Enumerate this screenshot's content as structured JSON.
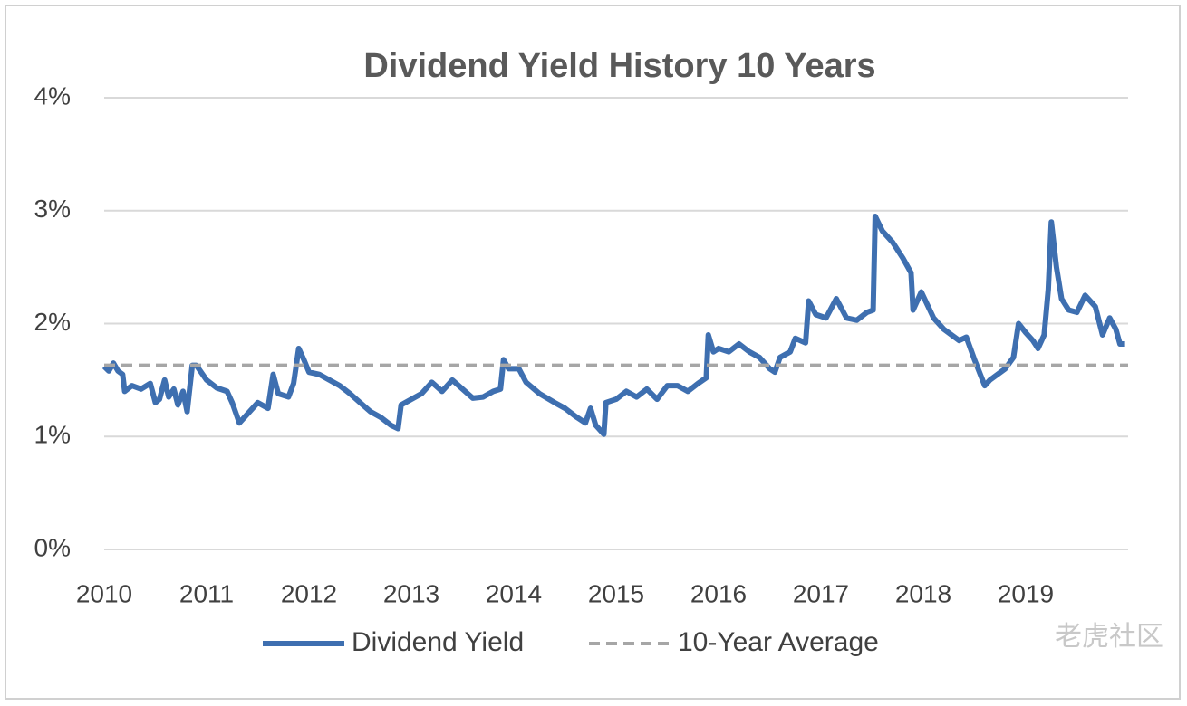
{
  "chart_data": {
    "type": "line",
    "title": "Dividend Yield History 10 Years",
    "xlim": [
      2010,
      2020
    ],
    "xticks": [
      2010,
      2011,
      2012,
      2013,
      2014,
      2015,
      2016,
      2017,
      2018,
      2019
    ],
    "ylim": [
      0,
      4
    ],
    "yticks": [
      {
        "value": 0,
        "label": "0%"
      },
      {
        "value": 1,
        "label": "1%"
      },
      {
        "value": 2,
        "label": "2%"
      },
      {
        "value": 3,
        "label": "3%"
      },
      {
        "value": 4,
        "label": "4%"
      }
    ],
    "grid": true,
    "legend": "bottom",
    "watermark": "老虎社区",
    "series": [
      {
        "name": "Dividend Yield",
        "color": "#3e6fb0",
        "x": [
          2010.0,
          2010.045,
          2010.09,
          2010.135,
          2010.18,
          2010.2,
          2010.27,
          2010.36,
          2010.45,
          2010.5,
          2010.54,
          2010.59,
          2010.63,
          2010.68,
          2010.72,
          2010.77,
          2010.81,
          2010.86,
          2010.9,
          2011.0,
          2011.1,
          2011.2,
          2011.25,
          2011.32,
          2011.4,
          2011.5,
          2011.6,
          2011.65,
          2011.7,
          2011.8,
          2011.85,
          2011.9,
          2011.95,
          2012.0,
          2012.1,
          2012.2,
          2012.3,
          2012.4,
          2012.5,
          2012.6,
          2012.7,
          2012.8,
          2012.87,
          2012.9,
          2013.0,
          2013.1,
          2013.2,
          2013.3,
          2013.4,
          2013.5,
          2013.6,
          2013.7,
          2013.8,
          2013.87,
          2013.9,
          2013.95,
          2014.05,
          2014.12,
          2014.25,
          2014.4,
          2014.5,
          2014.6,
          2014.7,
          2014.75,
          2014.8,
          2014.88,
          2014.9,
          2015.0,
          2015.1,
          2015.2,
          2015.3,
          2015.4,
          2015.5,
          2015.6,
          2015.7,
          2015.8,
          2015.88,
          2015.9,
          2015.95,
          2016.0,
          2016.1,
          2016.2,
          2016.3,
          2016.4,
          2016.5,
          2016.55,
          2016.6,
          2016.7,
          2016.75,
          2016.85,
          2016.88,
          2016.95,
          2017.05,
          2017.15,
          2017.25,
          2017.35,
          2017.45,
          2017.51,
          2017.53,
          2017.6,
          2017.7,
          2017.8,
          2017.88,
          2017.9,
          2017.98,
          2018.1,
          2018.2,
          2018.35,
          2018.42,
          2018.5,
          2018.6,
          2018.65,
          2018.8,
          2018.88,
          2018.93,
          2019.0,
          2019.07,
          2019.12,
          2019.18,
          2019.22,
          2019.25,
          2019.3,
          2019.35,
          2019.42,
          2019.5,
          2019.58,
          2019.68,
          2019.75,
          2019.82,
          2019.88,
          2019.92,
          2019.97
        ],
        "values": [
          1.62,
          1.58,
          1.65,
          1.58,
          1.55,
          1.4,
          1.45,
          1.42,
          1.47,
          1.3,
          1.33,
          1.5,
          1.35,
          1.42,
          1.28,
          1.4,
          1.22,
          1.63,
          1.63,
          1.5,
          1.43,
          1.4,
          1.3,
          1.12,
          1.2,
          1.3,
          1.25,
          1.55,
          1.38,
          1.35,
          1.47,
          1.78,
          1.68,
          1.57,
          1.55,
          1.5,
          1.45,
          1.38,
          1.3,
          1.22,
          1.17,
          1.1,
          1.07,
          1.28,
          1.33,
          1.38,
          1.48,
          1.4,
          1.5,
          1.42,
          1.34,
          1.35,
          1.4,
          1.42,
          1.68,
          1.6,
          1.6,
          1.48,
          1.38,
          1.3,
          1.25,
          1.18,
          1.12,
          1.25,
          1.1,
          1.02,
          1.3,
          1.33,
          1.4,
          1.35,
          1.42,
          1.33,
          1.45,
          1.45,
          1.4,
          1.47,
          1.52,
          1.9,
          1.75,
          1.78,
          1.75,
          1.82,
          1.75,
          1.7,
          1.6,
          1.57,
          1.7,
          1.75,
          1.87,
          1.83,
          2.2,
          2.08,
          2.05,
          2.22,
          2.05,
          2.03,
          2.1,
          2.12,
          2.95,
          2.82,
          2.72,
          2.58,
          2.45,
          2.12,
          2.28,
          2.05,
          1.95,
          1.85,
          1.88,
          1.68,
          1.45,
          1.5,
          1.6,
          1.7,
          2.0,
          1.92,
          1.85,
          1.78,
          1.9,
          2.3,
          2.9,
          2.5,
          2.22,
          2.12,
          2.1,
          2.25,
          2.15,
          1.9,
          2.05,
          1.95,
          1.82,
          1.82
        ]
      },
      {
        "name": "10-Year Average",
        "color": "#a6a6a6",
        "dashed": true,
        "x": [
          2010,
          2020
        ],
        "values": [
          1.63,
          1.63
        ]
      }
    ]
  }
}
